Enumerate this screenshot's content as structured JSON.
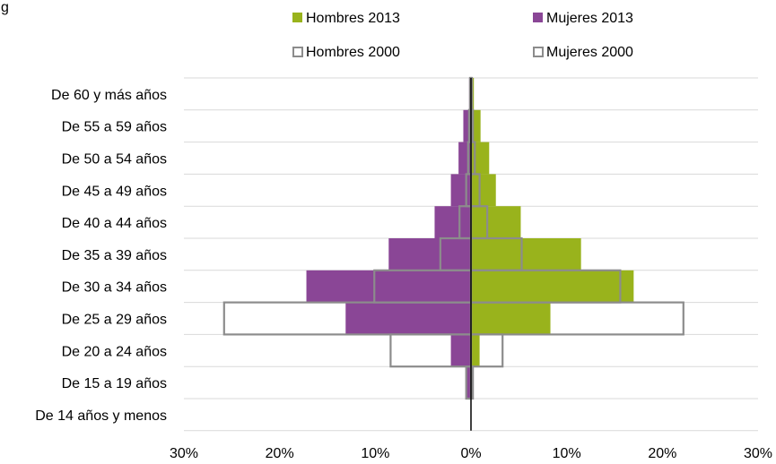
{
  "header_fragment": "g",
  "chart_data": {
    "type": "bar",
    "orientation": "horizontal",
    "layout": "population-pyramid",
    "categories": [
      "De 60 y más años",
      "De 55 a 59 años",
      "De 50 a 54 años",
      "De 45 a 49 años",
      "De 40 a 44 años",
      "De 35 a 39 años",
      "De 30 a 34 años",
      "De 25 a 29 años",
      "De 20 a 24 años",
      "De 15 a 19 años",
      "De 14 años y menos"
    ],
    "series": [
      {
        "name": "Hombres 2013",
        "side": "right",
        "style": "filled",
        "color": "#99B31C",
        "values": [
          0.3,
          1.0,
          1.9,
          2.6,
          5.2,
          11.5,
          17.0,
          8.3,
          0.9,
          0.2,
          0.0
        ]
      },
      {
        "name": "Mujeres 2013",
        "side": "left",
        "style": "filled",
        "color": "#8A4696",
        "values": [
          0.2,
          0.8,
          1.3,
          2.1,
          3.8,
          8.6,
          17.2,
          13.1,
          2.1,
          0.5,
          0.0
        ]
      },
      {
        "name": "Hombres 2000",
        "side": "right",
        "style": "outline",
        "color": "#8C8C8C",
        "values": [
          0.1,
          0.2,
          0.4,
          0.9,
          1.7,
          5.3,
          15.6,
          22.2,
          3.3,
          0.2,
          0.0
        ]
      },
      {
        "name": "Mujeres 2000",
        "side": "left",
        "style": "outline",
        "color": "#8C8C8C",
        "values": [
          0.1,
          0.2,
          0.3,
          0.5,
          1.2,
          3.2,
          10.1,
          25.8,
          8.4,
          0.5,
          0.0
        ]
      }
    ],
    "x_ticks": [
      "30%",
      "20%",
      "10%",
      "0%",
      "10%",
      "20%",
      "30%"
    ],
    "xlim": [
      -30,
      30
    ],
    "x_unit": "%",
    "grid": "horizontal",
    "legend_placement": "top"
  }
}
